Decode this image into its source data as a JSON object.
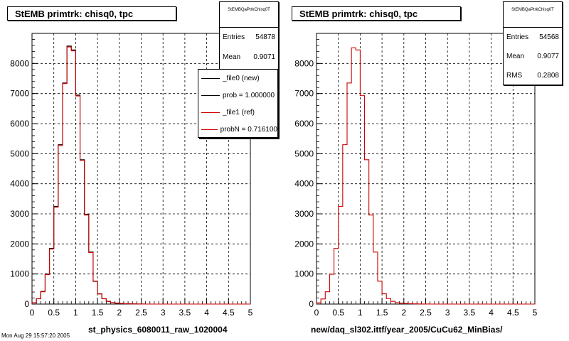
{
  "chart_data": [
    {
      "type": "histogram",
      "title": "StEMB primtrk: chisq0, tpc",
      "xlabel": "st_physics_6080011_raw_1020004",
      "xlim": [
        0,
        5
      ],
      "ylim": [
        0,
        9000
      ],
      "xticks": [
        "0",
        "0.5",
        "1",
        "1.5",
        "2",
        "2.5",
        "3",
        "3.5",
        "4",
        "4.5",
        "5"
      ],
      "yticks": [
        "0",
        "1000",
        "2000",
        "3000",
        "4000",
        "5000",
        "6000",
        "7000",
        "8000"
      ],
      "grid": true,
      "bin_width": 0.1,
      "x": [
        0.05,
        0.15,
        0.25,
        0.35,
        0.45,
        0.55,
        0.65,
        0.75,
        0.85,
        0.95,
        1.05,
        1.15,
        1.25,
        1.35,
        1.45,
        1.55,
        1.65,
        1.75,
        1.85,
        1.95,
        2.05,
        2.15,
        2.25,
        2.35,
        2.45,
        2.55
      ],
      "series": [
        {
          "name": "_file0 (new)",
          "color": "#000000",
          "values": [
            40,
            180,
            420,
            1000,
            1850,
            3250,
            5300,
            7350,
            8580,
            8450,
            6950,
            4800,
            2980,
            1730,
            760,
            340,
            180,
            90,
            50,
            30,
            20,
            12,
            8,
            5,
            3,
            2
          ]
        },
        {
          "name": "_file1 (ref)",
          "color": "#cc0000",
          "values": [
            40,
            175,
            410,
            980,
            1830,
            3220,
            5270,
            7330,
            8550,
            8420,
            6920,
            4780,
            2960,
            1710,
            750,
            335,
            175,
            88,
            48,
            28,
            18,
            11,
            7,
            4,
            3,
            2
          ]
        }
      ],
      "stats": {
        "header": "StEMBQaPtrkChisq0T",
        "entries_label": "Entries",
        "entries": "54878",
        "mean_label": "Mean",
        "mean": "0.9071"
      },
      "legend": {
        "placement": "top-right",
        "entries": [
          {
            "label": "_file0 (new)",
            "color": "#000000"
          },
          {
            "label": "prob = 1.000000",
            "color": "#000000"
          },
          {
            "label": "_file1 (ref)",
            "color": "#cc0000"
          },
          {
            "label": "probN = 0.716100",
            "color": "#cc0000"
          }
        ]
      }
    },
    {
      "type": "histogram",
      "title": "StEMB primtrk: chisq0, tpc",
      "xlabel": "new/daq_sl302.ittf/year_2005/CuCu62_MinBias/",
      "xlim": [
        0,
        5
      ],
      "ylim": [
        0,
        9000
      ],
      "xticks": [
        "0",
        "0.5",
        "1",
        "1.5",
        "2",
        "2.5",
        "3",
        "3.5",
        "4",
        "4.5",
        "5"
      ],
      "yticks": [
        "0",
        "1000",
        "2000",
        "3000",
        "4000",
        "5000",
        "6000",
        "7000",
        "8000"
      ],
      "grid": true,
      "bin_width": 0.1,
      "x": [
        0.05,
        0.15,
        0.25,
        0.35,
        0.45,
        0.55,
        0.65,
        0.75,
        0.85,
        0.95,
        1.05,
        1.15,
        1.25,
        1.35,
        1.45,
        1.55,
        1.65,
        1.75,
        1.85,
        1.95,
        2.05,
        2.15,
        2.25,
        2.35,
        2.45,
        2.55
      ],
      "series": [
        {
          "color": "#cc0000",
          "values": [
            40,
            170,
            410,
            990,
            1850,
            3250,
            5300,
            7350,
            8520,
            8450,
            6930,
            4800,
            2960,
            1730,
            760,
            340,
            180,
            90,
            50,
            30,
            20,
            12,
            8,
            5,
            3,
            2
          ]
        }
      ],
      "stats": {
        "header": "StEMBQaPtrkChisq0T",
        "entries_label": "Entries",
        "entries": "54568",
        "mean_label": "Mean",
        "mean": "0.9077",
        "rms_label": "RMS",
        "rms": "0.2808"
      }
    }
  ],
  "footer": "Mon Aug 29 15:57:20 2005"
}
